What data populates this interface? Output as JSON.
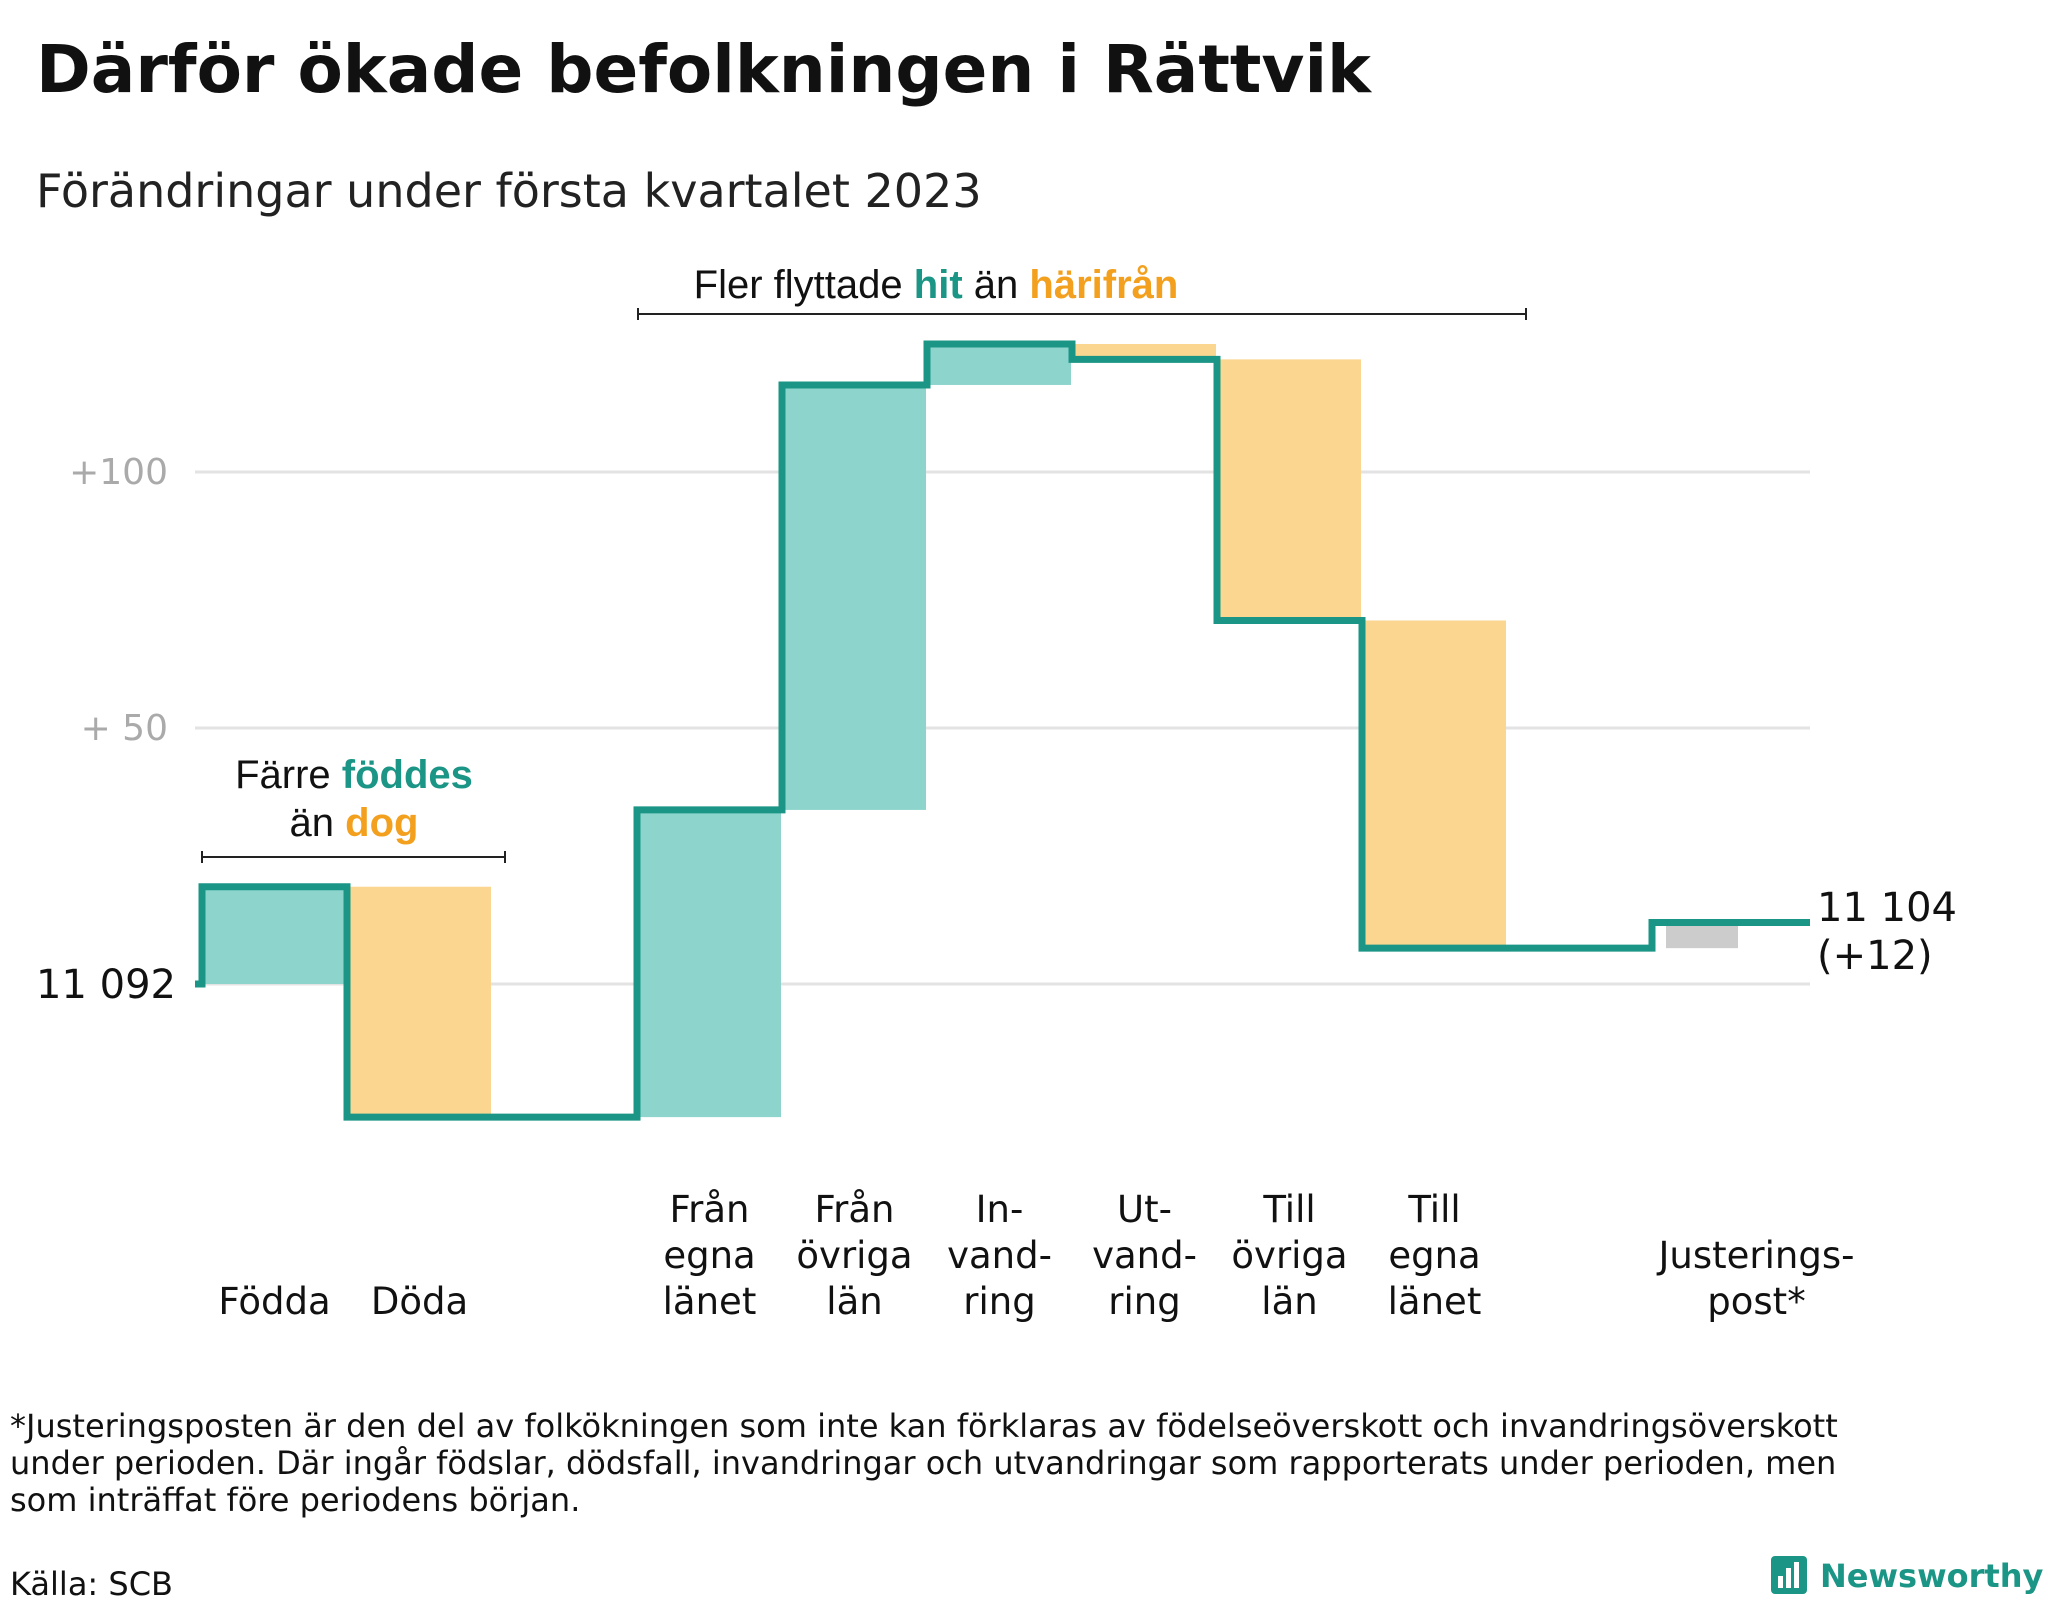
{
  "title": "Därför ökade befolkningen i Rättvik",
  "subtitle": "Förändringar under första kvartalet 2023",
  "colors": {
    "increase": "#8dd5cc",
    "decrease": "#fad690",
    "adjust": "#cccccc",
    "line": "#1b9585",
    "orange_text": "#f2a01e",
    "teal_text": "#1b9585",
    "grid": "#e3e3e3"
  },
  "annotations": {
    "migration": {
      "prefix": "Fler flyttade",
      "hit": "hit",
      "mid": "än",
      "harifran": "härifrån"
    },
    "births": {
      "line1_prefix": "Färre",
      "line1_highlight": "föddes",
      "line2_prefix": "än",
      "line2_highlight": "dog"
    }
  },
  "start_label": "11 092",
  "end_label": {
    "line1": "11 104",
    "line2": "(+12)"
  },
  "footnote": [
    "*Justeringsposten är den del av folkökningen som inte kan förklaras av födelseöverskott och invandringsöverskott",
    "under perioden. Där ingår födslar, dödsfall, invandringar och utvandringar som rapporterats under perioden, men",
    "som inträffat före periodens början."
  ],
  "source": "Källa: SCB",
  "brand": "Newsworthy",
  "chart_data": {
    "type": "waterfall",
    "start_value": 11092,
    "end_value": 11104,
    "y_ticks": [
      {
        "value": 100,
        "label": "+100"
      },
      {
        "value": 50,
        "label": "+ 50"
      }
    ],
    "ylim": [
      -30,
      125
    ],
    "steps": [
      {
        "label_lines": [
          "Födda"
        ],
        "change": 19,
        "kind": "increase"
      },
      {
        "label_lines": [
          "Döda"
        ],
        "change": -45,
        "kind": "decrease"
      },
      {
        "label_lines": [],
        "change": 0,
        "kind": "none"
      },
      {
        "label_lines": [
          "Från",
          "egna",
          "länet"
        ],
        "change": 60,
        "kind": "increase"
      },
      {
        "label_lines": [
          "Från",
          "övriga",
          "län"
        ],
        "change": 83,
        "kind": "increase"
      },
      {
        "label_lines": [
          "In-",
          "vand-",
          "ring"
        ],
        "change": 8,
        "kind": "increase"
      },
      {
        "label_lines": [
          "Ut-",
          "vand-",
          "ring"
        ],
        "change": -3,
        "kind": "decrease"
      },
      {
        "label_lines": [
          "Till",
          "övriga",
          "län"
        ],
        "change": -51,
        "kind": "decrease"
      },
      {
        "label_lines": [
          "Till",
          "egna",
          "länet"
        ],
        "change": -64,
        "kind": "decrease"
      },
      {
        "label_lines": [],
        "change": 0,
        "kind": "none"
      },
      {
        "label_lines": [
          "Justerings-",
          "post*"
        ],
        "change": 5,
        "kind": "adjust"
      }
    ]
  }
}
